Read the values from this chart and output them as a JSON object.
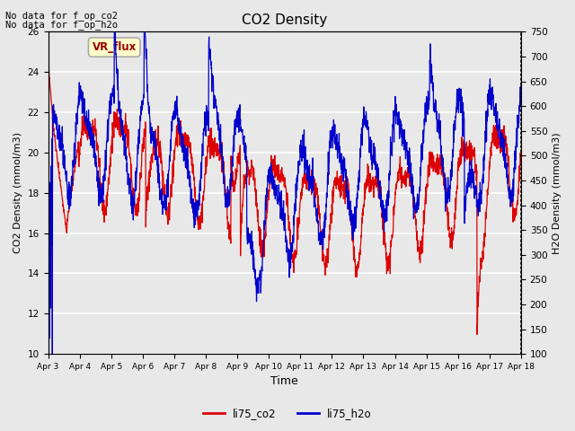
{
  "title": "CO2 Density",
  "xlabel": "Time",
  "ylabel_left": "CO2 Density (mmol/m3)",
  "ylabel_right": "H2O Density (mmol/m3)",
  "annotation_line1": "No data for f_op_co2",
  "annotation_line2": "No data for f_op_h2o",
  "legend_box_text": "VR_flux",
  "legend_box_facecolor": "#FFFFCC",
  "legend_box_edgecolor": "#AAAAAA",
  "legend_box_text_color": "#990000",
  "co2_color": "#DD0000",
  "h2o_color": "#0000CC",
  "ylim_left": [
    10,
    26
  ],
  "ylim_right": [
    100,
    750
  ],
  "yticks_left": [
    10,
    12,
    14,
    16,
    18,
    20,
    22,
    24,
    26
  ],
  "yticks_right": [
    100,
    150,
    200,
    250,
    300,
    350,
    400,
    450,
    500,
    550,
    600,
    650,
    700,
    750
  ],
  "xtick_labels": [
    "Apr 3",
    "Apr 4",
    "Apr 5",
    "Apr 6",
    "Apr 7",
    "Apr 8",
    "Apr 9",
    "Apr 10",
    "Apr 11",
    "Apr 12",
    "Apr 13",
    "Apr 14",
    "Apr 15",
    "Apr 16",
    "Apr 17",
    "Apr 18"
  ],
  "plot_bg_color": "#E8E8E8",
  "grid_color": "#FFFFFF",
  "line_width": 0.9,
  "legend_labels": [
    "li75_co2",
    "li75_h2o"
  ]
}
